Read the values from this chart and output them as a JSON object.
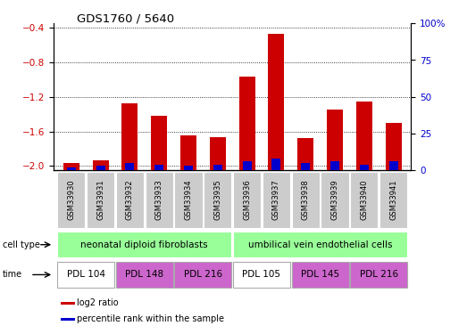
{
  "title": "GDS1760 / 5640",
  "samples": [
    "GSM33930",
    "GSM33931",
    "GSM33932",
    "GSM33933",
    "GSM33934",
    "GSM33935",
    "GSM33936",
    "GSM33937",
    "GSM33938",
    "GSM33939",
    "GSM33940",
    "GSM33941"
  ],
  "log2_ratio": [
    -1.97,
    -1.93,
    -1.27,
    -1.42,
    -1.65,
    -1.67,
    -0.97,
    -0.47,
    -1.68,
    -1.35,
    -1.25,
    -1.5
  ],
  "percentile_rank": [
    2,
    3,
    5,
    4,
    3,
    4,
    6,
    8,
    5,
    6,
    4,
    6
  ],
  "bar_color_red": "#cc0000",
  "bar_color_blue": "#0000cc",
  "ylim_left": [
    -2.05,
    -0.35
  ],
  "ylim_right": [
    0,
    100
  ],
  "yticks_left": [
    -2.0,
    -1.6,
    -1.2,
    -0.8,
    -0.4
  ],
  "yticks_right": [
    0,
    25,
    50,
    75,
    100
  ],
  "ytick_labels_right": [
    "0",
    "25",
    "50",
    "75",
    "100%"
  ],
  "cell_type_groups": [
    {
      "label": "neonatal diploid fibroblasts",
      "start": 0,
      "end": 5,
      "color": "#99ff99"
    },
    {
      "label": "umbilical vein endothelial cells",
      "start": 6,
      "end": 11,
      "color": "#99ff99"
    }
  ],
  "time_groups": [
    {
      "label": "PDL 104",
      "start": 0,
      "end": 1,
      "color": "#ffffff"
    },
    {
      "label": "PDL 148",
      "start": 2,
      "end": 3,
      "color": "#cc66cc"
    },
    {
      "label": "PDL 216",
      "start": 4,
      "end": 5,
      "color": "#cc66cc"
    },
    {
      "label": "PDL 105",
      "start": 6,
      "end": 7,
      "color": "#ffffff"
    },
    {
      "label": "PDL 145",
      "start": 8,
      "end": 9,
      "color": "#cc66cc"
    },
    {
      "label": "PDL 216",
      "start": 10,
      "end": 11,
      "color": "#cc66cc"
    }
  ],
  "legend_items": [
    {
      "label": "log2 ratio",
      "color": "#cc0000"
    },
    {
      "label": "percentile rank within the sample",
      "color": "#0000cc"
    }
  ],
  "left_tick_color": "#cc0000",
  "right_tick_color": "#0000cc",
  "sample_box_color": "#cccccc",
  "grid_color": "#555555"
}
